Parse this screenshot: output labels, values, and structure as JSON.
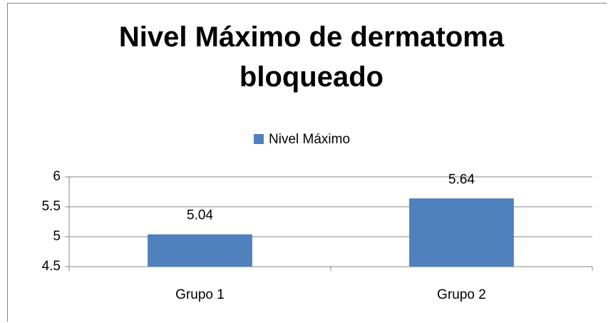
{
  "chart_data": {
    "type": "bar",
    "title": "Nivel Máximo de dermatoma bloqueado",
    "categories": [
      "Grupo 1",
      "Grupo 2"
    ],
    "series": [
      {
        "name": "Nivel Máximo",
        "color": "#4f81bd",
        "values": [
          5.04,
          5.64
        ]
      }
    ],
    "ylim": [
      4.5,
      6
    ],
    "yticks": [
      4.5,
      5,
      5.5,
      6
    ],
    "grid": true,
    "legend": "top"
  }
}
